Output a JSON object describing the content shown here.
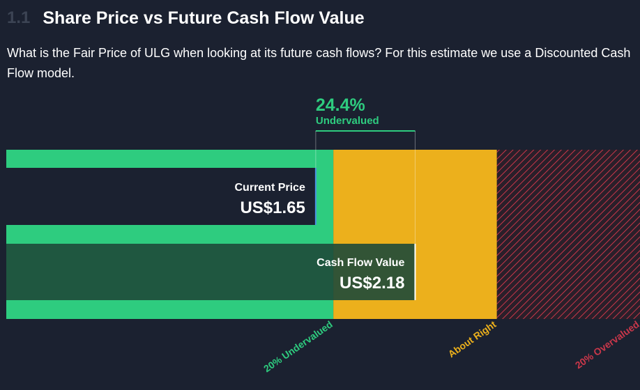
{
  "header": {
    "section_number": "1.1",
    "title": "Share Price vs Future Cash Flow Value",
    "description": "What is the Fair Price of ULG when looking at its future cash flows? For this estimate we use a Discounted Cash Flow model."
  },
  "colors": {
    "background": "#1b2130",
    "undervalued": "#2ecc7f",
    "about_right": "#ecb01c",
    "overvalued": "#c9374a",
    "current_bar": "#1b2130",
    "cash_flow_bar": "#1e4a3a",
    "marker_current": "#4a90e2",
    "marker_value": "#ffffff"
  },
  "chart_data": {
    "type": "bar",
    "valuation": {
      "percent_label": "24.4%",
      "status_label": "Undervalued",
      "percent": 24.4
    },
    "bars": [
      {
        "name": "Current Price",
        "value": 1.65,
        "value_label": "US$1.65"
      },
      {
        "name": "Cash Flow Value",
        "value": 2.18,
        "value_label": "US$2.18"
      }
    ],
    "zones": [
      {
        "label": "20% Undervalued",
        "from_ratio": 0.0,
        "to_ratio": 0.8
      },
      {
        "label": "About Right",
        "from_ratio": 0.8,
        "to_ratio": 1.2
      },
      {
        "label": "20% Overvalued",
        "from_ratio": 1.2,
        "to_ratio": 1.55
      }
    ]
  }
}
